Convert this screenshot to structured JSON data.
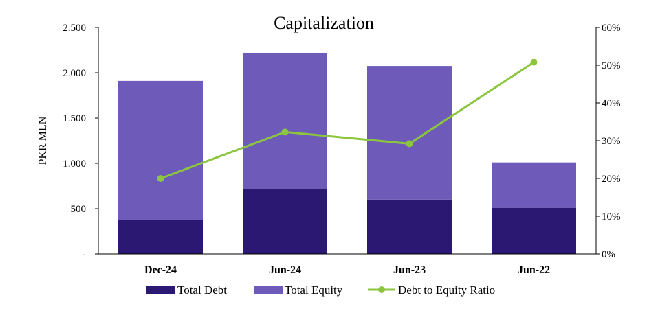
{
  "chart_data": {
    "type": "bar",
    "stacked": true,
    "title": "Capitalization",
    "ylabel": "PKR MLN",
    "y2label": "",
    "categories": [
      "Dec-24",
      "Jun-24",
      "Jun-23",
      "Jun-22"
    ],
    "ylim": [
      0,
      2500
    ],
    "y2lim": [
      0,
      0.6
    ],
    "yticks": [
      "-",
      "500",
      "1.000",
      "1.500",
      "2.000",
      "2.500"
    ],
    "y2ticks": [
      "0%",
      "10%",
      "20%",
      "30%",
      "40%",
      "50%",
      "60%"
    ],
    "series": [
      {
        "name": "Total Debt",
        "kind": "bar",
        "axis": "left",
        "color": "#2b1872",
        "values": [
          375,
          715,
          600,
          510
        ]
      },
      {
        "name": "Total Equity",
        "kind": "bar",
        "axis": "left",
        "color": "#6e5ab8",
        "values": [
          1535,
          1505,
          1475,
          500
        ]
      },
      {
        "name": "Debt to Equity Ratio",
        "kind": "line",
        "axis": "right",
        "color": "#8cc63f",
        "values": [
          0.2,
          0.323,
          0.292,
          0.508
        ]
      }
    ],
    "grid": false,
    "legend": "bottom"
  }
}
